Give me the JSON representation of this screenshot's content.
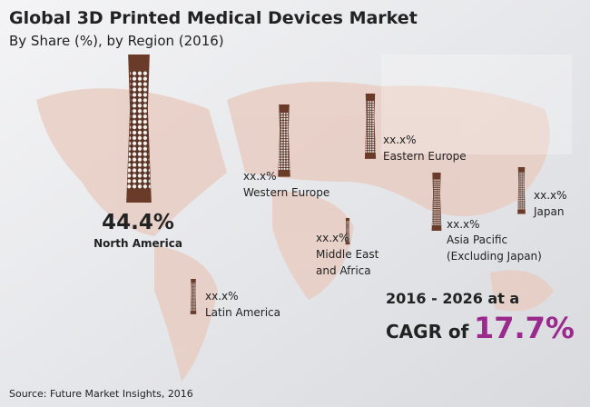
{
  "header": {
    "title": "Global 3D Printed Medical Devices Market",
    "subtitle": "By Share (%), by Region (2016)"
  },
  "regions": [
    {
      "value": "44.4%",
      "label": [
        "North America"
      ]
    },
    {
      "value": "xx.x%",
      "label": [
        "Western Europe"
      ]
    },
    {
      "value": "xx.x%",
      "label": [
        "Eastern Europe"
      ]
    },
    {
      "value": "xx.x%",
      "label": [
        "Middle East",
        "and Africa"
      ]
    },
    {
      "value": "xx.x%",
      "label": [
        "Asia Pacific",
        "(Excluding Japan)"
      ]
    },
    {
      "value": "xx.x%",
      "label": [
        "Japan"
      ]
    },
    {
      "value": "xx.x%",
      "label": [
        "Latin America"
      ]
    }
  ],
  "cagr": {
    "period": "2016 - 2026 at a",
    "prefix": "CAGR of",
    "value": "17.7%"
  },
  "source": "Source: Future Market Insights, 2016"
}
